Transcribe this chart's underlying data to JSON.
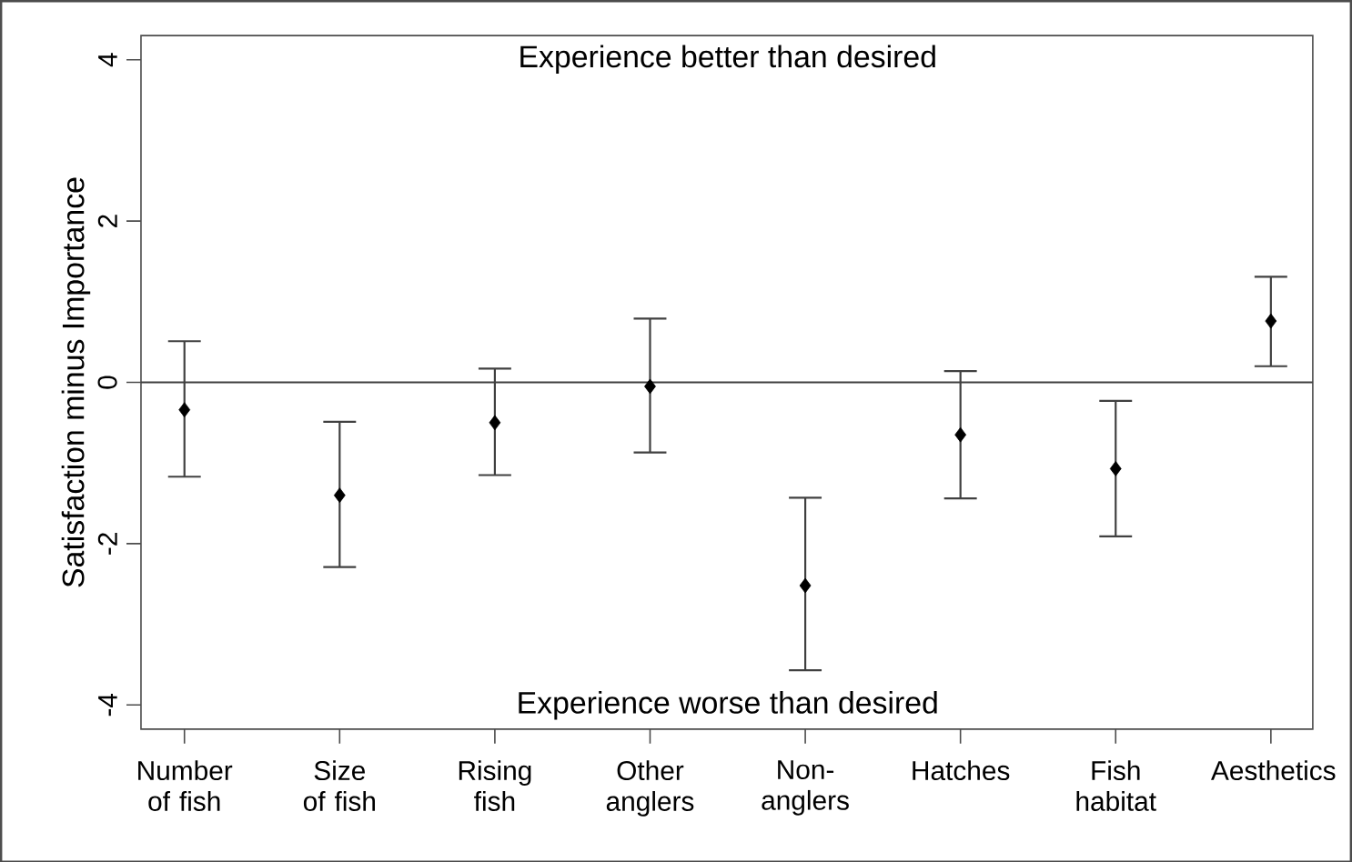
{
  "chart_data": {
    "type": "scatter",
    "ylabel": "Satisfaction minus Importance",
    "categories": [
      "Number of fish",
      "Size of fish",
      "Rising fish",
      "Other anglers",
      "Non-anglers",
      "Hatches",
      "Fish habitat",
      "Aesthetics"
    ],
    "values": [
      -0.34,
      -1.4,
      -0.5,
      -0.05,
      -2.52,
      -0.65,
      -1.07,
      0.76
    ],
    "errors": [
      [
        -1.17,
        0.51
      ],
      [
        -2.29,
        -0.49
      ],
      [
        -1.15,
        0.17
      ],
      [
        -0.87,
        0.79
      ],
      [
        -3.57,
        -1.43
      ],
      [
        -1.44,
        0.14
      ],
      [
        -1.91,
        -0.23
      ],
      [
        0.2,
        1.31
      ]
    ],
    "color": "#000000",
    "marker": "diamond",
    "ylim": [
      -4.3,
      4.3
    ],
    "yticks": [
      -4,
      -2,
      0,
      2,
      4
    ],
    "ref_lines": [
      {
        "axis": "y",
        "value": 0,
        "color": "#404040"
      }
    ],
    "annotations": [
      "Experience better than desired",
      "Experience worse than desired"
    ],
    "grid": false
  }
}
